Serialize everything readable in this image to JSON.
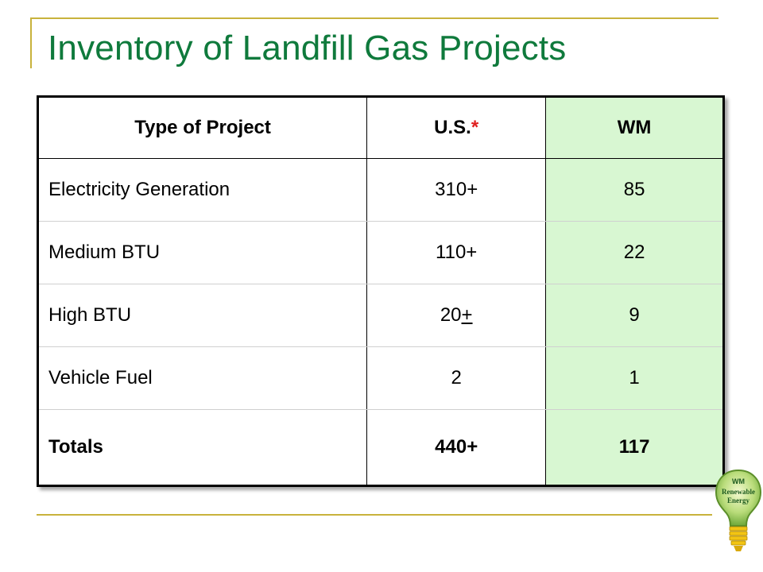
{
  "slide": {
    "title": "Inventory of Landfill Gas Projects"
  },
  "table": {
    "headers": {
      "type": "Type of Project",
      "us_base": "U.S.",
      "us_marker": "*",
      "wm": "WM"
    },
    "rows": [
      {
        "type": "Electricity Generation",
        "us": "310+",
        "wm": "85"
      },
      {
        "type": "Medium BTU",
        "us": "110+",
        "wm": "22"
      },
      {
        "type": "High BTU",
        "us_base": "20",
        "us_suffix": "+",
        "wm": "9"
      },
      {
        "type": "Vehicle Fuel",
        "us": "2",
        "wm": "1"
      }
    ],
    "totals": {
      "label": "Totals",
      "us": "440+",
      "wm": "117"
    }
  },
  "logo": {
    "brand": "WM",
    "line1": "Renewable",
    "line2": "Energy"
  },
  "colors": {
    "title": "#0f7a3c",
    "rule": "#c8b23c",
    "wm_column": "#d8f7d2",
    "marker": "#e02020"
  }
}
